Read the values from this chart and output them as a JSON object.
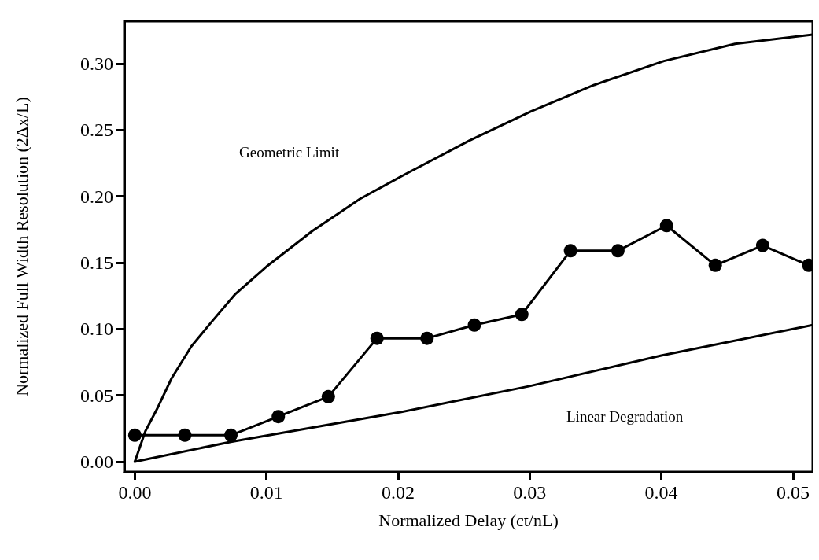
{
  "chart_data": {
    "type": "line",
    "xlabel": "Normalized Delay (ct/nL)",
    "ylabel": "Normalized Full Width Resolution (2Δx/L)",
    "xlim": [
      -0.0008,
      0.0515
    ],
    "ylim": [
      -0.0077,
      0.332
    ],
    "xticks": [
      {
        "value": 0,
        "label": "0.00"
      },
      {
        "value": 0.01,
        "label": "0.01"
      },
      {
        "value": 0.02,
        "label": "0.02"
      },
      {
        "value": 0.03,
        "label": "0.03"
      },
      {
        "value": 0.04,
        "label": "0.04"
      },
      {
        "value": 0.05,
        "label": "0.05"
      }
    ],
    "yticks": [
      {
        "value": 0,
        "label": "0.00"
      },
      {
        "value": 0.05,
        "label": "0.05"
      },
      {
        "value": 0.1,
        "label": "0.10"
      },
      {
        "value": 0.15,
        "label": "0.15"
      },
      {
        "value": 0.2,
        "label": "0.20"
      },
      {
        "value": 0.25,
        "label": "0.25"
      },
      {
        "value": 0.3,
        "label": "0.30"
      }
    ],
    "grid": false,
    "series": [
      {
        "color": "#000000",
        "marker": "none",
        "x": [
          0,
          0.0008,
          0.0017,
          0.0028,
          0.0043,
          0.0058,
          0.0076,
          0.01,
          0.0135,
          0.0171,
          0.0206,
          0.0254,
          0.0301,
          0.0349,
          0.0402,
          0.0456,
          0.0515
        ],
        "values": [
          0,
          0.023,
          0.04,
          0.063,
          0.087,
          0.105,
          0.126,
          0.147,
          0.174,
          0.198,
          0.217,
          0.242,
          0.264,
          0.284,
          0.302,
          0.315,
          0.322
        ]
      },
      {
        "color": "#000000",
        "marker": "none",
        "x": [
          0,
          0.0073,
          0.02,
          0.03,
          0.04,
          0.0515
        ],
        "values": [
          0,
          0.015,
          0.037,
          0.057,
          0.08,
          0.103
        ]
      },
      {
        "color": "#000000",
        "marker": "circle",
        "x": [
          0,
          0.0038,
          0.0073,
          0.0109,
          0.0147,
          0.0184,
          0.0222,
          0.0258,
          0.0294,
          0.0331,
          0.0367,
          0.0404,
          0.0441,
          0.0477,
          0.0512
        ],
        "values": [
          0.02,
          0.02,
          0.02,
          0.034,
          0.049,
          0.093,
          0.093,
          0.103,
          0.111,
          0.159,
          0.159,
          0.178,
          0.148,
          0.163,
          0.148
        ]
      }
    ],
    "annotations": [
      "Geometric Limit",
      "Linear Degradation"
    ]
  }
}
